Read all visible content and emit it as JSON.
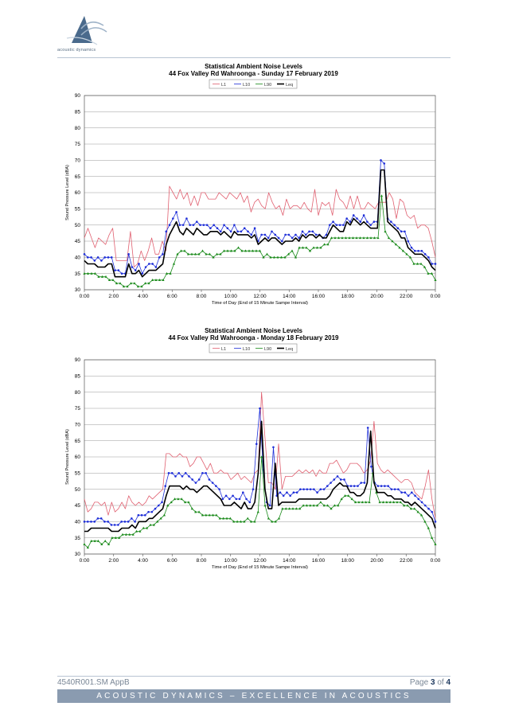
{
  "header": {
    "logo_text": "acoustic dynamics"
  },
  "footer": {
    "ref": "4540R001.SM AppB",
    "page_label": "Page",
    "page_current": "3",
    "page_of": "of",
    "page_total": "4",
    "tagline": "ACOUSTIC DYNAMICS – EXCELLENCE IN ACOUSTICS"
  },
  "colors": {
    "L1": "#e06070",
    "L10": "#1f2fd8",
    "L90": "#1a8a1a",
    "Leq": "#000000"
  },
  "chart_data": [
    {
      "type": "line",
      "title": "Statistical Ambient Noise Levels",
      "subtitle": "44 Fox Valley Rd Wahroonga - Sunday 17 February 2019",
      "xlabel": "Time of Day (End of 15 Minute Sampe Interval)",
      "ylabel": "Sound Pressure Level (dBA)",
      "ylim": [
        30,
        90
      ],
      "yticks": [
        "30",
        "35",
        "40",
        "45",
        "50",
        "55",
        "60",
        "65",
        "70",
        "75",
        "80",
        "85",
        "90"
      ],
      "xlim_hours": [
        0,
        24
      ],
      "xticks": [
        "0:00",
        "2:00",
        "4:00",
        "6:00",
        "8:00",
        "10:00",
        "12:00",
        "14:00",
        "16:00",
        "18:00",
        "20:00",
        "22:00",
        "0:00"
      ],
      "legend_position": "top-center",
      "grid": true,
      "series": [
        {
          "name": "L1",
          "color": "#e06070",
          "marker": "none",
          "width": 0.8,
          "values": [
            46,
            49,
            46,
            43,
            46,
            45,
            44,
            47,
            49,
            39,
            39,
            39,
            39,
            48,
            37,
            38,
            42,
            39,
            42,
            46,
            41,
            41,
            45,
            42,
            62,
            60,
            58,
            61,
            58,
            60,
            56,
            59,
            56,
            60,
            60,
            58,
            58,
            58,
            60,
            59,
            58,
            60,
            59,
            58,
            60,
            57,
            59,
            54,
            57,
            58,
            56,
            55,
            60,
            57,
            55,
            56,
            53,
            58,
            55,
            56,
            56,
            55,
            57,
            55,
            54,
            61,
            53,
            57,
            56,
            57,
            53,
            61,
            58,
            57,
            55,
            59,
            55,
            59,
            55,
            55,
            57,
            56,
            55,
            57,
            57,
            57,
            60,
            58,
            52,
            58,
            57,
            53,
            52,
            53,
            49,
            50,
            50,
            49,
            45,
            40
          ]
        },
        {
          "name": "L10",
          "color": "#1f2fd8",
          "marker": "dot",
          "width": 0.8,
          "values": [
            41,
            40,
            40,
            39,
            40,
            39,
            40,
            40,
            40,
            36,
            36,
            35,
            35,
            41,
            37,
            36,
            38,
            35,
            37,
            38,
            38,
            37,
            40,
            41,
            48,
            50,
            52,
            54,
            50,
            50,
            52,
            50,
            50,
            51,
            50,
            50,
            50,
            49,
            50,
            49,
            48,
            50,
            49,
            48,
            50,
            48,
            48,
            49,
            48,
            47,
            49,
            45,
            47,
            47,
            46,
            48,
            47,
            46,
            45,
            47,
            47,
            46,
            47,
            46,
            48,
            47,
            48,
            48,
            47,
            47,
            46,
            47,
            50,
            51,
            50,
            50,
            50,
            52,
            51,
            53,
            52,
            51,
            53,
            51,
            50,
            51,
            51,
            70,
            69,
            52,
            51,
            50,
            49,
            48,
            48,
            45,
            43,
            42,
            42,
            42,
            41,
            40,
            38,
            38
          ]
        },
        {
          "name": "L90",
          "color": "#1a8a1a",
          "marker": "triangle",
          "width": 0.8,
          "values": [
            35,
            35,
            35,
            35,
            34,
            34,
            34,
            33,
            33,
            32,
            32,
            31,
            31,
            32,
            32,
            31,
            31,
            32,
            32,
            33,
            33,
            33,
            33,
            35,
            35,
            38,
            41,
            42,
            42,
            41,
            41,
            41,
            41,
            42,
            41,
            41,
            40,
            41,
            41,
            42,
            42,
            42,
            42,
            43,
            42,
            42,
            42,
            42,
            42,
            42,
            40,
            41,
            40,
            40,
            40,
            40,
            40,
            41,
            42,
            40,
            43,
            43,
            43,
            42,
            43,
            43,
            43,
            44,
            44,
            46,
            46,
            46,
            46,
            46,
            46,
            46,
            46,
            46,
            46,
            46,
            46,
            46,
            46,
            59,
            48,
            46,
            45,
            44,
            43,
            42,
            41,
            40,
            38,
            38,
            38,
            37,
            35,
            35,
            33
          ]
        },
        {
          "name": "Leq",
          "color": "#000000",
          "marker": "none",
          "width": 1.6,
          "values": [
            39,
            38,
            38,
            38,
            37,
            37,
            37,
            38,
            38,
            34,
            34,
            34,
            34,
            38,
            35,
            35,
            36,
            34,
            35,
            36,
            36,
            36,
            37,
            38,
            44,
            47,
            49,
            51,
            48,
            47,
            49,
            48,
            47,
            49,
            48,
            47,
            47,
            48,
            48,
            48,
            47,
            48,
            47,
            46,
            48,
            47,
            47,
            47,
            47,
            46,
            47,
            44,
            45,
            46,
            45,
            46,
            46,
            45,
            44,
            45,
            45,
            45,
            46,
            45,
            47,
            46,
            47,
            47,
            46,
            47,
            46,
            46,
            48,
            50,
            49,
            48,
            48,
            51,
            50,
            52,
            51,
            50,
            51,
            50,
            49,
            49,
            49,
            67,
            67,
            51,
            50,
            49,
            48,
            46,
            46,
            43,
            42,
            41,
            41,
            41,
            40,
            39,
            37,
            36
          ]
        }
      ]
    },
    {
      "type": "line",
      "title": "Statistical Ambient Noise Levels",
      "subtitle": "44 Fox Valley Rd Wahroonga - Monday 18 February 2019",
      "xlabel": "Time of Day (End of 15 Minute Sampe Interval)",
      "ylabel": "Sound Pressure Level (dBA)",
      "ylim": [
        30,
        90
      ],
      "yticks": [
        "30",
        "35",
        "40",
        "45",
        "50",
        "55",
        "60",
        "65",
        "70",
        "75",
        "80",
        "85",
        "90"
      ],
      "xlim_hours": [
        0,
        24
      ],
      "xticks": [
        "0:00",
        "2:00",
        "4:00",
        "6:00",
        "8:00",
        "10:00",
        "12:00",
        "14:00",
        "16:00",
        "18:00",
        "20:00",
        "22:00",
        "0:00"
      ],
      "legend_position": "top-center",
      "grid": true,
      "series": [
        {
          "name": "L1",
          "color": "#e06070",
          "marker": "none",
          "width": 0.8,
          "values": [
            47,
            43,
            44,
            46,
            46,
            45,
            46,
            42,
            46,
            43,
            44,
            46,
            44,
            48,
            46,
            45,
            46,
            45,
            46,
            48,
            47,
            48,
            49,
            50,
            61,
            61,
            60,
            60,
            61,
            60,
            60,
            57,
            58,
            60,
            60,
            58,
            56,
            58,
            55,
            55,
            56,
            55,
            55,
            53,
            54,
            55,
            53,
            54,
            53,
            52,
            55,
            56,
            80,
            66,
            52,
            52,
            50,
            64,
            50,
            54,
            54,
            54,
            55,
            56,
            55,
            56,
            55,
            56,
            54,
            56,
            55,
            55,
            58,
            58,
            59,
            57,
            55,
            56,
            58,
            58,
            58,
            57,
            55,
            56,
            59,
            71,
            58,
            56,
            55,
            56,
            55,
            54,
            53,
            52,
            53,
            53,
            52,
            49,
            48,
            47,
            51,
            56,
            47,
            41
          ]
        },
        {
          "name": "L10",
          "color": "#1f2fd8",
          "marker": "dot",
          "width": 0.8,
          "values": [
            40,
            40,
            40,
            40,
            41,
            41,
            40,
            40,
            39,
            39,
            39,
            40,
            40,
            40,
            41,
            40,
            42,
            42,
            42,
            43,
            43,
            44,
            45,
            46,
            51,
            55,
            55,
            54,
            55,
            54,
            55,
            54,
            53,
            52,
            53,
            55,
            55,
            53,
            52,
            51,
            50,
            47,
            48,
            47,
            48,
            47,
            47,
            49,
            47,
            46,
            50,
            64,
            75,
            56,
            46,
            45,
            63,
            48,
            49,
            48,
            49,
            48,
            49,
            49,
            50,
            50,
            50,
            50,
            50,
            49,
            50,
            50,
            51,
            52,
            53,
            54,
            53,
            53,
            51,
            51,
            51,
            51,
            52,
            52,
            69,
            57,
            52,
            51,
            51,
            51,
            51,
            50,
            50,
            50,
            49,
            49,
            48,
            49,
            48,
            47,
            46,
            45,
            44,
            43,
            40
          ]
        },
        {
          "name": "L90",
          "color": "#1a8a1a",
          "marker": "triangle",
          "width": 0.8,
          "values": [
            33,
            32,
            34,
            34,
            34,
            33,
            34,
            33,
            35,
            35,
            35,
            36,
            36,
            36,
            36,
            37,
            37,
            38,
            38,
            39,
            39,
            40,
            41,
            42,
            45,
            46,
            47,
            47,
            47,
            46,
            46,
            44,
            43,
            43,
            42,
            42,
            42,
            42,
            42,
            41,
            41,
            41,
            41,
            40,
            40,
            40,
            40,
            41,
            40,
            40,
            43,
            60,
            45,
            41,
            40,
            40,
            41,
            44,
            44,
            44,
            44,
            44,
            44,
            45,
            45,
            45,
            45,
            45,
            46,
            45,
            45,
            44,
            45,
            45,
            47,
            48,
            48,
            47,
            46,
            46,
            46,
            46,
            46,
            55,
            49,
            46,
            46,
            46,
            46,
            46,
            46,
            46,
            45,
            45,
            44,
            44,
            43,
            42,
            40,
            38,
            35,
            33
          ]
        },
        {
          "name": "Leq",
          "color": "#000000",
          "marker": "none",
          "width": 1.6,
          "values": [
            37,
            37,
            38,
            38,
            38,
            38,
            38,
            38,
            37,
            37,
            37,
            38,
            38,
            38,
            39,
            38,
            40,
            40,
            40,
            41,
            41,
            42,
            43,
            44,
            48,
            51,
            51,
            51,
            51,
            50,
            51,
            50,
            50,
            49,
            50,
            51,
            51,
            50,
            49,
            48,
            47,
            45,
            45,
            45,
            46,
            45,
            44,
            46,
            44,
            44,
            46,
            55,
            71,
            50,
            44,
            44,
            58,
            45,
            46,
            46,
            46,
            46,
            46,
            47,
            47,
            47,
            47,
            47,
            47,
            47,
            47,
            47,
            48,
            50,
            51,
            52,
            51,
            51,
            49,
            49,
            48,
            48,
            49,
            52,
            68,
            52,
            49,
            49,
            49,
            48,
            48,
            47,
            47,
            47,
            46,
            46,
            45,
            46,
            45,
            44,
            43,
            42,
            41,
            38
          ]
        }
      ]
    }
  ]
}
